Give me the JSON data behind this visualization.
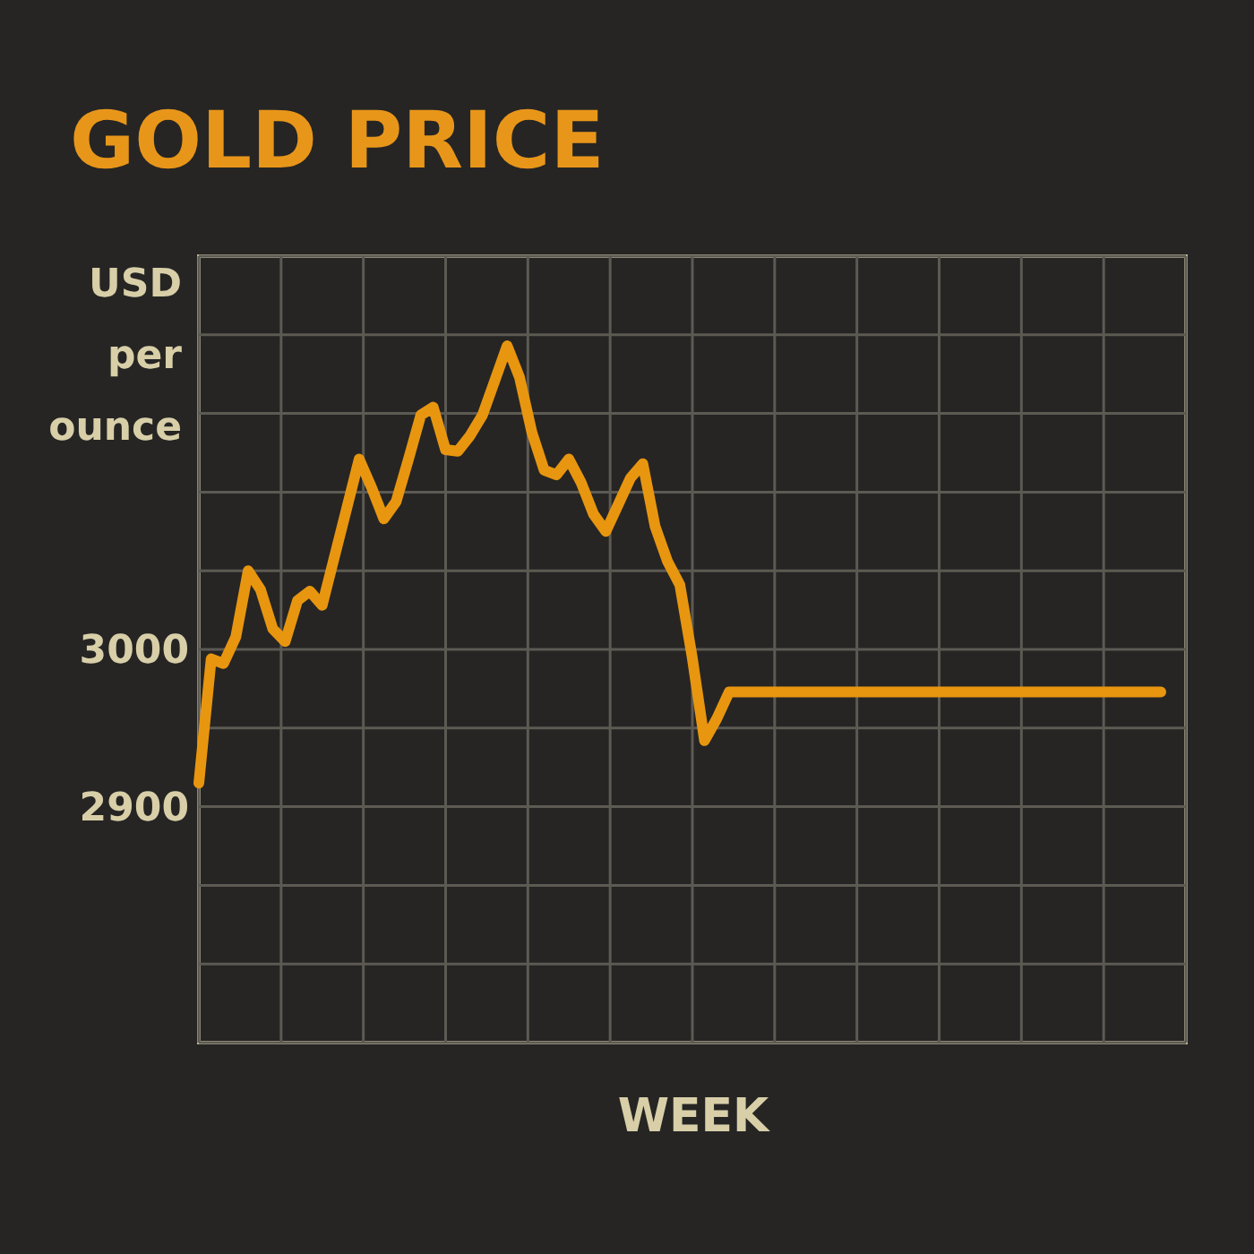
{
  "chart_data": {
    "type": "line",
    "title": "GOLD PRICE",
    "xlabel": "WEEK",
    "ylabel": "USD per ounce",
    "categories": [
      null,
      null,
      null,
      null,
      null,
      null,
      null,
      null,
      null,
      null,
      null,
      null,
      null,
      null,
      null,
      null,
      null,
      null,
      null,
      null,
      null,
      null,
      null,
      null,
      null,
      null,
      null,
      null,
      null,
      null,
      null,
      null,
      null,
      null,
      null,
      null,
      null,
      null,
      null,
      null,
      null,
      null,
      null,
      null,
      null,
      null,
      null,
      null,
      null,
      null,
      null,
      null,
      null,
      null,
      null,
      null,
      null,
      null,
      null,
      null,
      null,
      null,
      null,
      null,
      null,
      null,
      null,
      null,
      null,
      null,
      null,
      null,
      null,
      null,
      null,
      null,
      null,
      null,
      null
    ],
    "series": [
      {
        "color": "#e8960f",
        "values": [
          2915,
          2994,
          2991,
          3008,
          3050,
          3038,
          3013,
          3005,
          3031,
          3037,
          3028,
          3059,
          3090,
          3121,
          3103,
          3083,
          3094,
          3121,
          3149,
          3154,
          3127,
          3126,
          3136,
          3149,
          3171,
          3193,
          3173,
          3138,
          3114,
          3111,
          3121,
          3106,
          3086,
          3075,
          3092,
          3109,
          3118,
          3078,
          3056,
          3041,
          2995,
          2942,
          2956,
          2973,
          2973,
          2973,
          2973,
          2973,
          2973,
          2973,
          2973,
          2973,
          2973,
          2973,
          2973,
          2973,
          2973,
          2973,
          2973,
          2973,
          2973,
          2973,
          2973,
          2973,
          2973,
          2973,
          2973,
          2973,
          2973,
          2973,
          2973,
          2973,
          2973,
          2973,
          2973,
          2973,
          2973,
          2973,
          2973
        ]
      }
    ],
    "ylim": [
      2750,
      3250
    ],
    "yticks": [
      {
        "value": 2750,
        "label": null
      },
      {
        "value": 2800,
        "label": null
      },
      {
        "value": 2850,
        "label": null
      },
      2900,
      {
        "value": 2950,
        "label": null
      },
      3000,
      {
        "value": 3050,
        "label": null
      },
      {
        "value": 3100,
        "label": null
      },
      {
        "value": 3150,
        "label": null
      },
      {
        "value": 3200,
        "label": null
      },
      {
        "value": 3250,
        "label": null
      }
    ],
    "tick_labels": "y",
    "grid": true,
    "marker": "none",
    "line_style": "solid"
  }
}
